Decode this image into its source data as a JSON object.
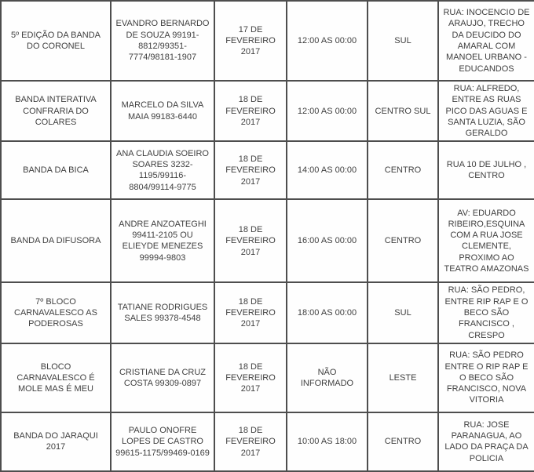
{
  "colors": {
    "border": "#4e4e4e",
    "text": "#3f3f3f",
    "background": "#fefefe"
  },
  "table": {
    "fields": [
      "name",
      "contact",
      "date",
      "time",
      "zone",
      "address"
    ],
    "rows": [
      {
        "name": "5º EDIÇÃO DA BANDA DO CORONEL",
        "contact": "EVANDRO BERNARDO DE SOUZA 99191-8812/99351-7774/98181-1907",
        "date": "17 DE FEVEREIRO 2017",
        "time": "12:00 AS 00:00",
        "zone": "SUL",
        "address": "RUA: INOCENCIO DE ARAUJO, TRECHO DA DEUCIDO DO AMARAL COM MANOEL URBANO - EDUCANDOS"
      },
      {
        "name": "BANDA INTERATIVA CONFRARIA DO COLARES",
        "contact": "MARCELO DA SILVA MAIA 99183-6440",
        "date": "18 DE FEVEREIRO 2017",
        "time": "12:00 AS 00:00",
        "zone": "CENTRO SUL",
        "address": "RUA: ALFREDO, ENTRE AS RUAS PICO DAS AGUAS E SANTA LUZIA, SÃO GERALDO"
      },
      {
        "name": "BANDA DA BICA",
        "contact": "ANA CLAUDIA SOEIRO SOARES 3232-1195/99116-8804/99114-9775",
        "date": "18 DE FEVEREIRO 2017",
        "time": "14:00 AS 00:00",
        "zone": "CENTRO",
        "address": "RUA 10 DE JULHO , CENTRO"
      },
      {
        "name": "BANDA DA DIFUSORA",
        "contact": "ANDRE ANZOATEGHI 99411-2105 OU ELIEYDE MENEZES 99994-9803",
        "date": "18 DE FEVEREIRO 2017",
        "time": "16:00 AS 00:00",
        "zone": "CENTRO",
        "address": "AV: EDUARDO RIBEIRO,ESQUINA COM A RUA JOSE CLEMENTE, PROXIMO AO TEATRO AMAZONAS"
      },
      {
        "name": "7º BLOCO CARNAVALESCO AS PODEROSAS",
        "contact": "TATIANE RODRIGUES SALES 99378-4548",
        "date": "18 DE FEVEREIRO 2017",
        "time": "18:00 AS 00:00",
        "zone": "SUL",
        "address": "RUA: SÃO PEDRO, ENTRE RIP RAP E O BECO SÃO FRANCISCO , CRESPO"
      },
      {
        "name": "BLOCO CARNAVALESCO É MOLE MAS É MEU",
        "contact": "CRISTIANE DA CRUZ COSTA 99309-0897",
        "date": "18 DE FEVEREIRO 2017",
        "time": "NÃO INFORMADO",
        "zone": "LESTE",
        "address": "RUA: SÃO PEDRO ENTRE O RIP RAP E O BECO SÃO FRANCISCO, NOVA VITORIA"
      },
      {
        "name": "BANDA DO JARAQUI 2017",
        "contact": "PAULO ONOFRE LOPES DE CASTRO 99615-1175/99469-0169",
        "date": "18 DE FEVEREIRO 2017",
        "time": "10:00 AS 18:00",
        "zone": "CENTRO",
        "address": "RUA: JOSE PARANAGUA, AO LADO DA PRAÇA DA POLICIA"
      }
    ]
  }
}
